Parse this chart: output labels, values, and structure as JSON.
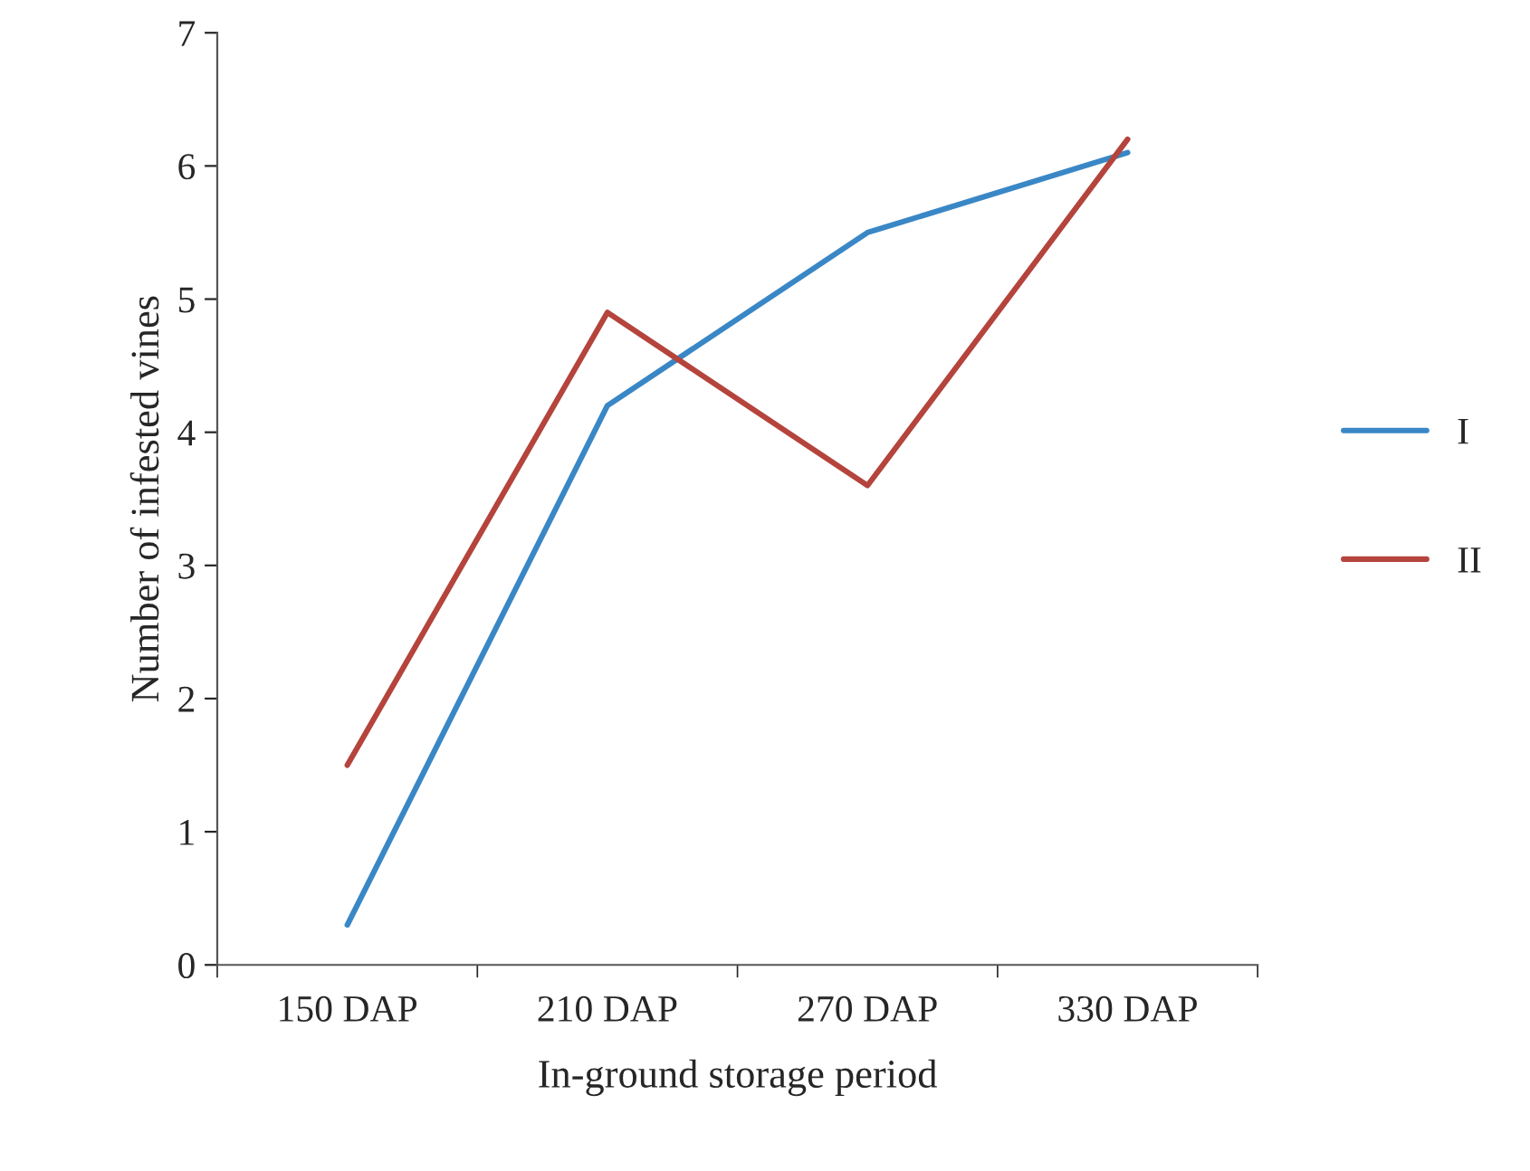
{
  "chart_data": {
    "type": "line",
    "xlabel": "In-ground storage period",
    "ylabel": "Number of infested vines",
    "categories": [
      "150 DAP",
      "210 DAP",
      "270 DAP",
      "330 DAP"
    ],
    "series": [
      {
        "name": "I",
        "color": "#3a87c6",
        "values": [
          0.3,
          4.2,
          5.5,
          6.1
        ]
      },
      {
        "name": "II",
        "color": "#b4443c",
        "values": [
          1.5,
          4.9,
          3.6,
          6.2
        ]
      }
    ],
    "ylim": [
      0,
      7
    ],
    "yticks": [
      0,
      1,
      2,
      3,
      4,
      5,
      6,
      7
    ],
    "grid": false,
    "legend": "right",
    "marker": "none",
    "line_style": "solid"
  }
}
